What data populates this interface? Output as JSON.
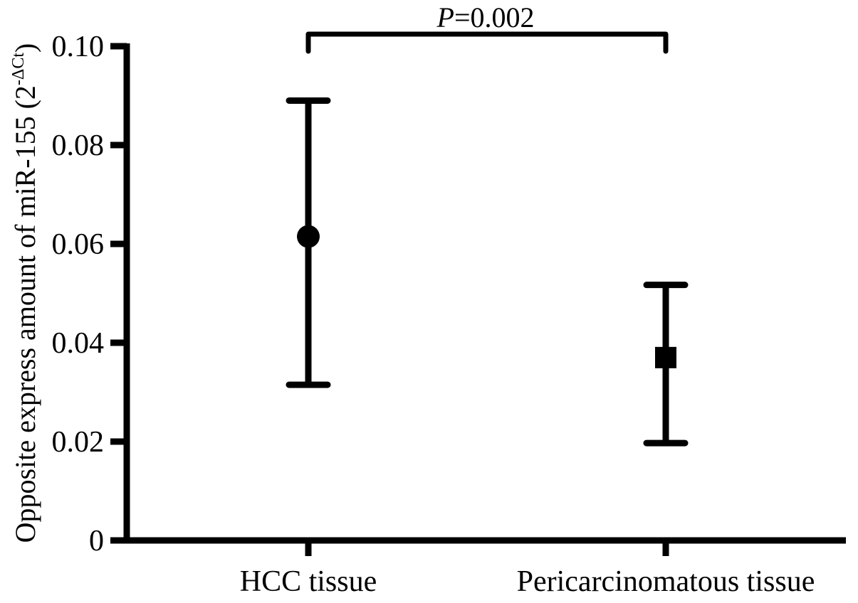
{
  "chart_data": {
    "type": "scatter",
    "title": "",
    "ylabel": {
      "main": "Opposite express amount of miR-155 (2",
      "exponent": "-ΔCt",
      "close": ")"
    },
    "xlabel": "",
    "ylim": [
      0,
      0.1
    ],
    "yticks": [
      "0",
      "0.02",
      "0.04",
      "0.06",
      "0.08",
      "0.10"
    ],
    "ytick_values": [
      0,
      0.02,
      0.04,
      0.06,
      0.08,
      0.1
    ],
    "grid": false,
    "legend": "none",
    "categories": [
      "HCC tissue",
      "Pericarcinomatous tissue"
    ],
    "series": [
      {
        "category": "HCC tissue",
        "marker": "circle",
        "mean": 0.0615,
        "error_low": 0.0315,
        "error_high": 0.089
      },
      {
        "category": "Pericarcinomatous tissue",
        "marker": "square",
        "mean": 0.037,
        "error_low": 0.0197,
        "error_high": 0.0517
      }
    ],
    "annotation": {
      "p_symbol": "P",
      "p_value": "=0.002",
      "between": [
        "HCC tissue",
        "Pericarcinomatous tissue"
      ]
    },
    "colors": {
      "ink": "#000000",
      "background": "#ffffff"
    }
  }
}
